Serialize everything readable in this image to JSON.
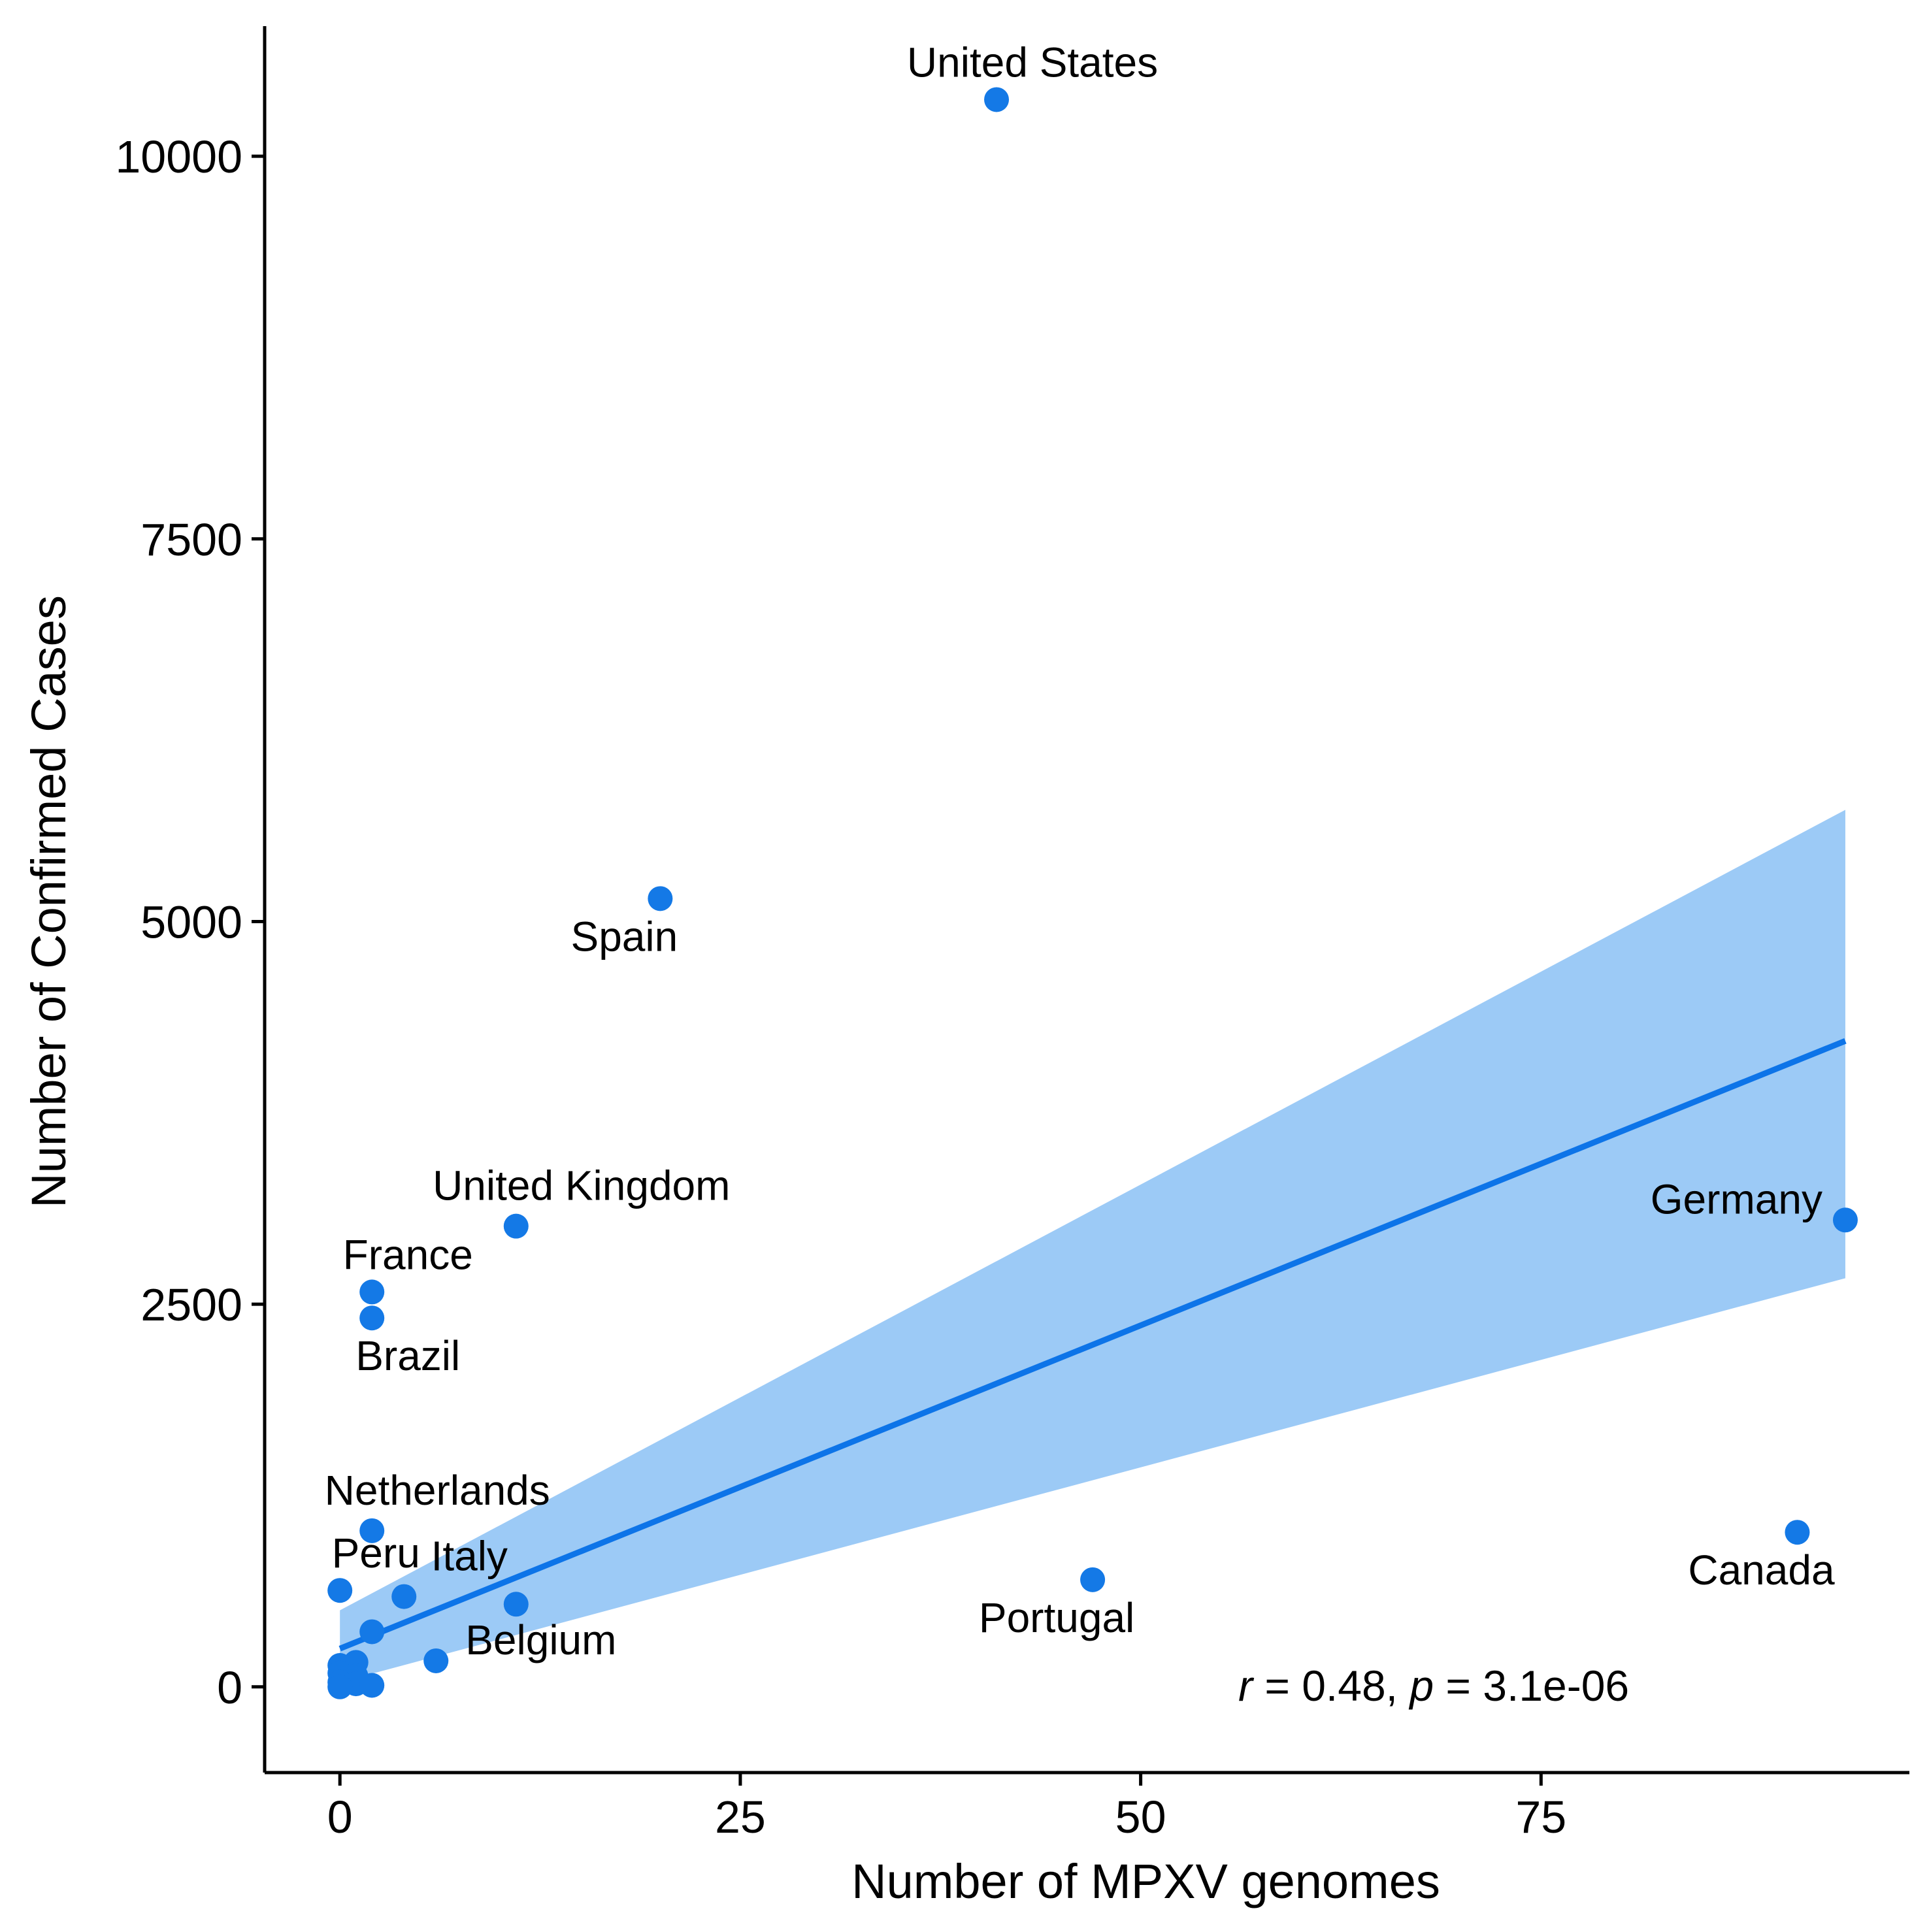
{
  "chart_data": {
    "type": "scatter",
    "title": "",
    "xlabel": "Number of MPXV genomes",
    "ylabel": "Number of Confirmed Cases",
    "xlim": [
      -4.7,
      98
    ],
    "ylim": [
      -560,
      10850
    ],
    "xticks": [
      0,
      25,
      50,
      75
    ],
    "yticks": [
      0,
      2500,
      5000,
      7500,
      10000
    ],
    "grid": false,
    "legend": "none",
    "colors": {
      "point": "#1479e6",
      "line": "#0d74e8",
      "band": "#9ccaf6",
      "axis": "#000000"
    },
    "annotation": {
      "r_symbol": "r",
      "r_text": " = 0.48, ",
      "p_symbol": "p",
      "p_text": " = 3.1e-06"
    },
    "regression": {
      "x": [
        0,
        94
      ],
      "y": [
        250,
        4220
      ],
      "ci_lower": [
        30,
        2670
      ],
      "ci_upper": [
        500,
        5730
      ]
    },
    "points": [
      {
        "x": 41,
        "y": 10370,
        "label": "United States",
        "label_pos": "above"
      },
      {
        "x": 20,
        "y": 5150,
        "label": "Spain",
        "label_pos": "below-left"
      },
      {
        "x": 11,
        "y": 3010,
        "label": "United Kingdom",
        "label_pos": "above-right"
      },
      {
        "x": 2,
        "y": 2580,
        "label": "France",
        "label_pos": "above"
      },
      {
        "x": 2,
        "y": 2410,
        "label": "Brazil",
        "label_pos": "below-right"
      },
      {
        "x": 94,
        "y": 3050,
        "label": "Germany",
        "label_pos": "left"
      },
      {
        "x": 2,
        "y": 1020,
        "label": "Netherlands",
        "label_pos": "above-right"
      },
      {
        "x": 0,
        "y": 630,
        "label": "Peru",
        "label_pos": "above"
      },
      {
        "x": 4,
        "y": 590,
        "label": "Italy",
        "label_pos": "above-right"
      },
      {
        "x": 11,
        "y": 540,
        "label": "",
        "label_pos": ""
      },
      {
        "x": 6,
        "y": 170,
        "label": "Belgium",
        "label_pos": "right"
      },
      {
        "x": 47,
        "y": 700,
        "label": "Portugal",
        "label_pos": "below-left"
      },
      {
        "x": 91,
        "y": 1010,
        "label": "Canada",
        "label_pos": "below-left"
      },
      {
        "x": 2,
        "y": 360,
        "label": "",
        "label_pos": ""
      },
      {
        "x": 0,
        "y": 140,
        "label": "",
        "label_pos": ""
      },
      {
        "x": 1,
        "y": 160,
        "label": "",
        "label_pos": ""
      },
      {
        "x": 0,
        "y": 90,
        "label": "",
        "label_pos": ""
      },
      {
        "x": 1,
        "y": 70,
        "label": "",
        "label_pos": ""
      },
      {
        "x": 0,
        "y": 30,
        "label": "",
        "label_pos": ""
      },
      {
        "x": 1,
        "y": 20,
        "label": "",
        "label_pos": ""
      },
      {
        "x": 0,
        "y": 0,
        "label": "",
        "label_pos": ""
      },
      {
        "x": 2,
        "y": 10,
        "label": "",
        "label_pos": ""
      }
    ]
  }
}
